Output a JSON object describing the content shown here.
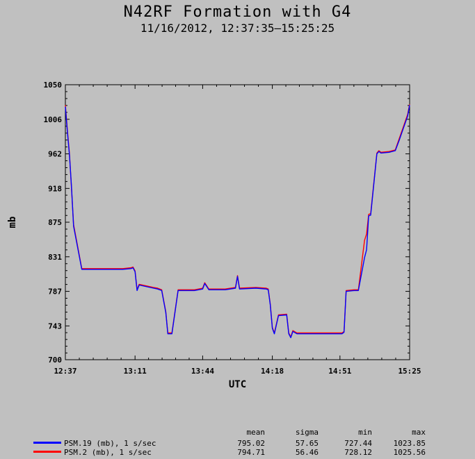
{
  "header": {
    "title": "N42RF Formation with G4",
    "subtitle": "11/16/2012, 12:37:35–15:25:25"
  },
  "chart_data": {
    "type": "line",
    "title": "N42RF Formation with G4",
    "subtitle": "11/16/2012, 12:37:35–15:25:25",
    "xlabel": "UTC",
    "ylabel": "mb",
    "ylim": [
      700,
      1050
    ],
    "xlim": [
      "12:37",
      "15:25"
    ],
    "yticks": [
      "700",
      "743",
      "787",
      "831",
      "875",
      "918",
      "962",
      "1006",
      "1050"
    ],
    "xticks": [
      "12:37",
      "13:11",
      "13:44",
      "14:18",
      "14:51",
      "15:25"
    ],
    "x_unit": "UTC time (HH:MM)",
    "series": [
      {
        "name": "PSM.19 (mb), 1 s/sec",
        "color": "#0000ff",
        "x": [
          "12:37",
          "12:38",
          "12:39",
          "12:40",
          "12:41",
          "12:45",
          "12:55",
          "13:05",
          "13:09",
          "13:10",
          "13:11",
          "13:12",
          "13:13",
          "13:20",
          "13:22",
          "13:24",
          "13:26",
          "13:27",
          "13:29",
          "13:32",
          "13:40",
          "13:44",
          "13:45",
          "13:47",
          "13:55",
          "14:00",
          "14:01",
          "14:02",
          "14:10",
          "14:15",
          "14:16",
          "14:17",
          "14:18",
          "14:19",
          "14:21",
          "14:25",
          "14:26",
          "14:27",
          "14:28",
          "14:30",
          "14:40",
          "14:48",
          "14:51",
          "14:52",
          "14:53",
          "14:54",
          "14:58",
          "15:00",
          "15:03",
          "15:04",
          "15:05",
          "15:06",
          "15:09",
          "15:10",
          "15:11",
          "15:15",
          "15:18",
          "15:20",
          "15:22",
          "15:24",
          "15:25"
        ],
        "y": [
          1022,
          990,
          960,
          920,
          870,
          815,
          815,
          815,
          816,
          817,
          812,
          788,
          795,
          791,
          790,
          788,
          760,
          733,
          733,
          788,
          788,
          790,
          797,
          789,
          789,
          791,
          806,
          790,
          791,
          790,
          789,
          770,
          740,
          733,
          756,
          757,
          733,
          728,
          736,
          733,
          733,
          733,
          733,
          733,
          735,
          787,
          788,
          788,
          830,
          840,
          883,
          884,
          962,
          965,
          963,
          964,
          966,
          980,
          995,
          1010,
          1024
        ]
      },
      {
        "name": "PSM.2 (mb), 1 s/sec",
        "color": "#ff0000",
        "x": [
          "12:37",
          "12:38",
          "12:39",
          "12:40",
          "12:41",
          "12:45",
          "12:55",
          "13:05",
          "13:09",
          "13:10",
          "13:11",
          "13:12",
          "13:13",
          "13:20",
          "13:22",
          "13:24",
          "13:26",
          "13:27",
          "13:29",
          "13:32",
          "13:40",
          "13:44",
          "13:45",
          "13:47",
          "13:55",
          "14:00",
          "14:01",
          "14:02",
          "14:10",
          "14:15",
          "14:16",
          "14:17",
          "14:18",
          "14:19",
          "14:21",
          "14:25",
          "14:26",
          "14:27",
          "14:28",
          "14:30",
          "14:40",
          "14:48",
          "14:51",
          "14:52",
          "14:53",
          "14:54",
          "14:58",
          "15:00",
          "15:03",
          "15:04",
          "15:05",
          "15:06",
          "15:09",
          "15:10",
          "15:11",
          "15:15",
          "15:18",
          "15:20",
          "15:22",
          "15:24",
          "15:25"
        ],
        "y": [
          1024,
          992,
          962,
          918,
          872,
          816,
          816,
          816,
          817,
          818,
          813,
          789,
          796,
          792,
          791,
          789,
          761,
          734,
          734,
          789,
          789,
          791,
          798,
          790,
          790,
          792,
          807,
          791,
          792,
          791,
          790,
          771,
          741,
          734,
          757,
          758,
          734,
          729,
          737,
          734,
          734,
          734,
          734,
          734,
          736,
          788,
          789,
          789,
          852,
          860,
          885,
          886,
          963,
          966,
          964,
          965,
          967,
          982,
          997,
          1012,
          1025
        ]
      }
    ],
    "legend": "bottom",
    "grid": false
  },
  "stats": {
    "headers": {
      "mean": "mean",
      "sigma": "sigma",
      "min": "min",
      "max": "max"
    },
    "rows": [
      {
        "name": "PSM.19 (mb), 1 s/sec",
        "color": "#0000ff",
        "mean": "795.02",
        "sigma": "57.65",
        "min": "727.44",
        "max": "1023.85"
      },
      {
        "name": "PSM.2 (mb), 1 s/sec",
        "color": "#ff0000",
        "mean": "794.71",
        "sigma": "56.46",
        "min": "728.12",
        "max": "1025.56"
      }
    ]
  }
}
